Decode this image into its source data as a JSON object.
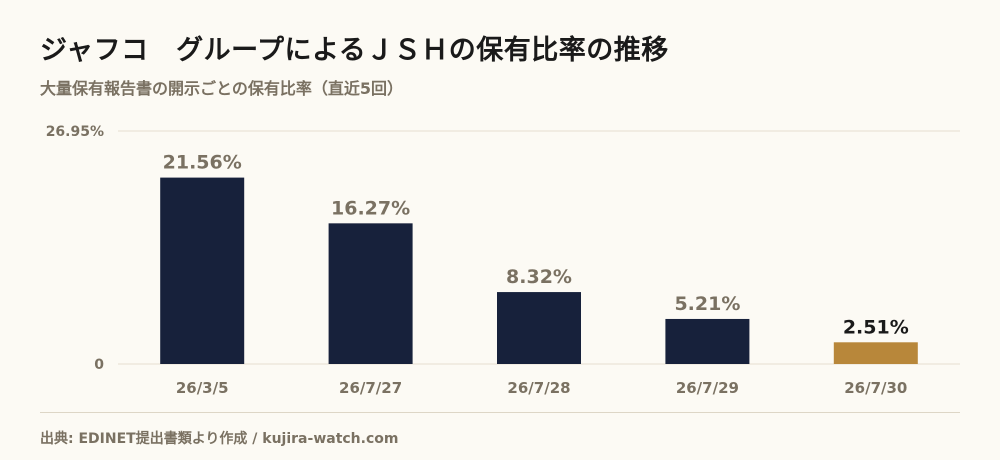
{
  "title": "ジャフコ　グループによるＪＳＨの保有比率の推移",
  "subtitle": "大量保有報告書の開示ごとの保有比率（直近5回）",
  "source": "出典: EDINET提出書類より作成 / kujira-watch.com",
  "colors": {
    "bar": "#17213b",
    "highlight": "#b8873a",
    "grid": "#e6dfcf",
    "axis_text": "#7a7162",
    "label_text": "#7a7162",
    "highlight_label_text": "#1a1a1a"
  },
  "chart_data": {
    "type": "bar",
    "categories": [
      "26/3/5",
      "26/7/27",
      "26/7/28",
      "26/7/29",
      "26/7/30"
    ],
    "values": [
      21.56,
      16.27,
      8.32,
      5.21,
      2.51
    ],
    "value_labels": [
      "21.56%",
      "16.27%",
      "8.32%",
      "5.21%",
      "2.51%"
    ],
    "highlight_index": 4,
    "ylim": [
      0,
      26.95
    ],
    "yticks": [
      {
        "value": 26.95,
        "label": "26.95%"
      },
      {
        "value": 0,
        "label": "0"
      }
    ],
    "grid": true
  }
}
